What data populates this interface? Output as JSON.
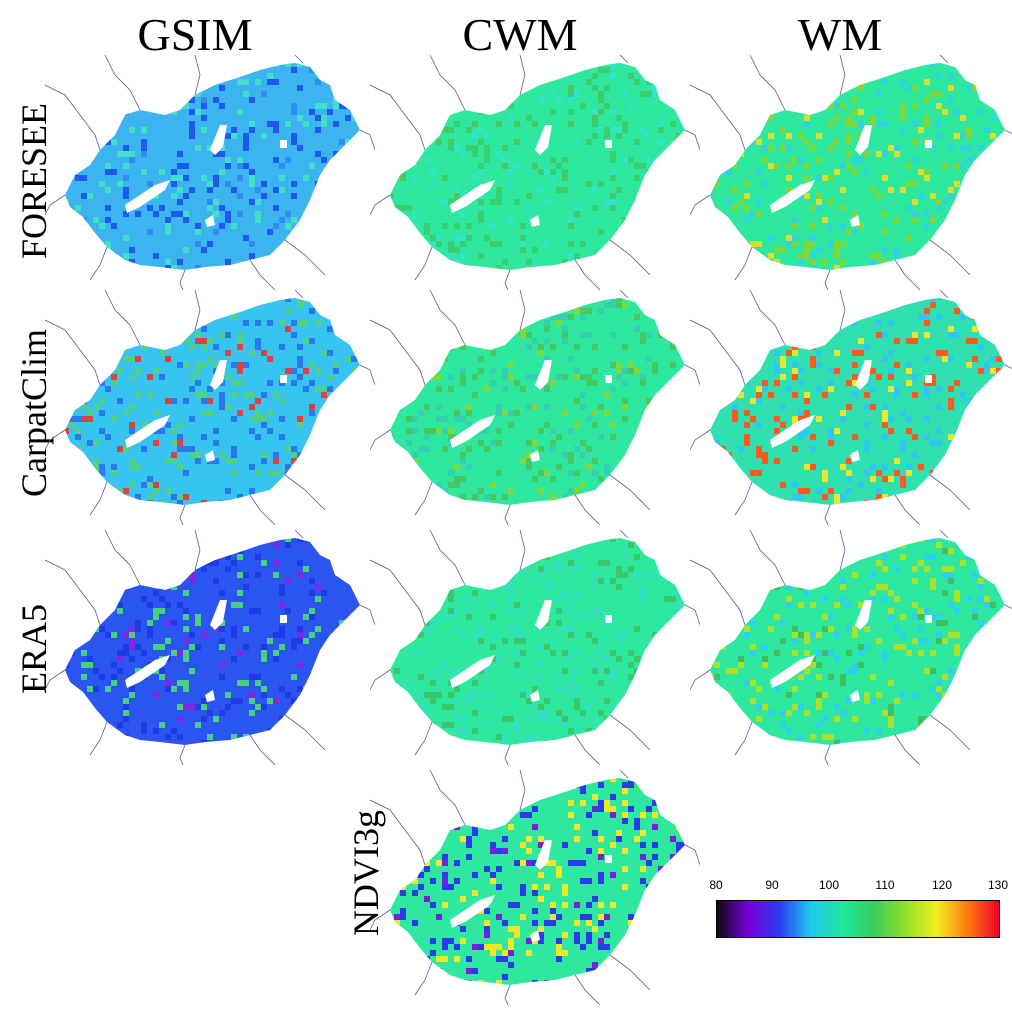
{
  "column_titles": [
    "GSIM",
    "CWM",
    "WM"
  ],
  "row_labels": [
    "FORESEE",
    "CarpatClim",
    "ERA5",
    "NDVI3g"
  ],
  "panels": [
    {
      "row": "FORESEE",
      "col": "GSIM",
      "base": "#3cb4f0",
      "accents": [
        "#1e5af0",
        "#41e0c8",
        "#2f8cf0"
      ]
    },
    {
      "row": "FORESEE",
      "col": "CWM",
      "base": "#2ee8a0",
      "accents": [
        "#3ad070",
        "#30e6c8",
        "#4ac864"
      ]
    },
    {
      "row": "FORESEE",
      "col": "WM",
      "base": "#2ee8a0",
      "accents": [
        "#7ed83a",
        "#30d4e0",
        "#d6e02a"
      ]
    },
    {
      "row": "CarpatClim",
      "col": "GSIM",
      "base": "#38c4f0",
      "accents": [
        "#50d088",
        "#2a78f0",
        "#e04040"
      ]
    },
    {
      "row": "CarpatClim",
      "col": "CWM",
      "base": "#2ee8a0",
      "accents": [
        "#48c860",
        "#34d0b0",
        "#80d83a"
      ]
    },
    {
      "row": "CarpatClim",
      "col": "WM",
      "base": "#30e0b0",
      "accents": [
        "#ff5a1e",
        "#30c8f0",
        "#e6e62a"
      ]
    },
    {
      "row": "ERA5",
      "col": "GSIM",
      "base": "#2a55f0",
      "accents": [
        "#1e3ce6",
        "#48d080",
        "#8028e0"
      ]
    },
    {
      "row": "ERA5",
      "col": "CWM",
      "base": "#2ee8a0",
      "accents": [
        "#34e0c0",
        "#3ac86c",
        "#2ae6b0"
      ]
    },
    {
      "row": "ERA5",
      "col": "WM",
      "base": "#2ee8a0",
      "accents": [
        "#a8e02a",
        "#2ed0f0",
        "#40c060"
      ]
    },
    {
      "row": "NDVI3g",
      "col": "CWM",
      "base": "#2ee8a0",
      "accents": [
        "#2a3ce8",
        "#f0e62a",
        "#7a1ed8"
      ]
    }
  ],
  "colorbar": {
    "ticks": [
      "80",
      "90",
      "100",
      "110",
      "120",
      "130"
    ],
    "min": 80,
    "max": 130,
    "colors": [
      "#0a0a14",
      "#7a00d8",
      "#2a3cf0",
      "#20c8f0",
      "#20e8a0",
      "#3acc5a",
      "#90e02a",
      "#f0f020",
      "#ff7a10",
      "#e8002a"
    ]
  },
  "colors": {
    "river": "#5a5a9a",
    "hole": "#ffffff"
  }
}
